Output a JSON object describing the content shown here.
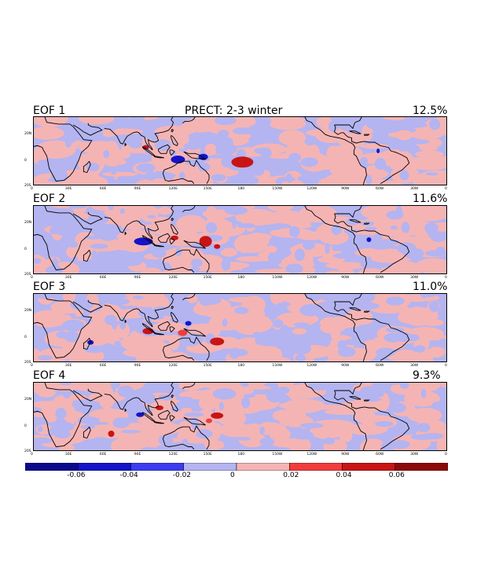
{
  "figure": {
    "title": "PRECT: 2-3 winter"
  },
  "panels": [
    {
      "label": "EOF 1",
      "variance": "12.5%"
    },
    {
      "label": "EOF 2",
      "variance": "11.6%"
    },
    {
      "label": "EOF 3",
      "variance": "11.0%"
    },
    {
      "label": "EOF 4",
      "variance": "9.3%"
    }
  ],
  "axes": {
    "x_ticks": [
      "0",
      "30E",
      "60E",
      "90E",
      "120E",
      "150E",
      "180",
      "150W",
      "120W",
      "90W",
      "60W",
      "30W",
      "0"
    ],
    "y_ticks": [
      "20N",
      "0",
      "20S"
    ]
  },
  "colorbar": {
    "labels": [
      "-0.06",
      "-0.04",
      "-0.02",
      "0",
      "0.02",
      "0.04",
      "0.06"
    ],
    "colors": [
      "#0a0a8c",
      "#1414c8",
      "#3c3cf0",
      "#b4b4f0",
      "#f5b4b4",
      "#f03c3c",
      "#c81414",
      "#8c0a0a"
    ]
  }
}
